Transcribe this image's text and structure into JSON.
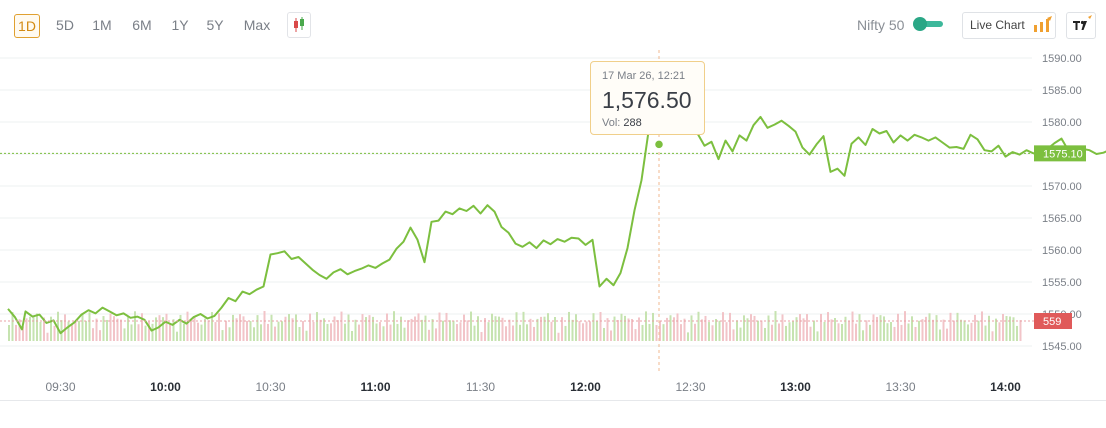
{
  "toolbar": {
    "ranges": [
      "1D",
      "5D",
      "1M",
      "6M",
      "1Y",
      "5Y",
      "Max"
    ],
    "active_range": "1D",
    "index_label": "Nifty 50",
    "live_chart_label": "Live Chart"
  },
  "tooltip": {
    "date": "17 Mar 26, 12:21",
    "price": "1,576.50",
    "vol_label": "Vol:",
    "vol_value": "288"
  },
  "colors": {
    "line": "#7cbf3f",
    "up_volume": "#c6e3b0",
    "down_volume": "#f2c4c8",
    "price_tag": "#7cbf3f",
    "volume_tag": "#e05a5a"
  },
  "chart_data": {
    "type": "line",
    "x_axis": {
      "ticks": [
        "09:30",
        "10:00",
        "10:30",
        "11:00",
        "11:30",
        "12:00",
        "12:30",
        "13:00",
        "13:30",
        "14:00"
      ],
      "bold_ticks": [
        "10:00",
        "11:00",
        "12:00",
        "13:00",
        "14:00"
      ]
    },
    "y_axis": {
      "ticks": [
        "1590.00",
        "1585.00",
        "1580.00",
        "1575.00",
        "1570.00",
        "1565.00",
        "1560.00",
        "1555.00",
        "1550.00",
        "1545.00"
      ],
      "min": 1545,
      "max": 1590
    },
    "reference_price": 1575.1,
    "reference_label": "1575.10",
    "volume_label": "559",
    "start_minute": 555,
    "price_series": [
      [
        555,
        1550.8
      ],
      [
        557,
        1549.5
      ],
      [
        559,
        1547.6
      ],
      [
        560,
        1550.4
      ],
      [
        562,
        1549.6
      ],
      [
        564,
        1549.9
      ],
      [
        566,
        1548.6
      ],
      [
        568,
        1549.0
      ],
      [
        570,
        1547.0
      ],
      [
        572,
        1547.9
      ],
      [
        574,
        1548.7
      ],
      [
        576,
        1549.9
      ],
      [
        578,
        1550.6
      ],
      [
        580,
        1550.1
      ],
      [
        582,
        1551.0
      ],
      [
        584,
        1550.4
      ],
      [
        586,
        1549.8
      ],
      [
        588,
        1550.1
      ],
      [
        590,
        1549.4
      ],
      [
        592,
        1549.6
      ],
      [
        594,
        1549.1
      ],
      [
        596,
        1547.4
      ],
      [
        598,
        1547.9
      ],
      [
        600,
        1548.8
      ],
      [
        602,
        1548.3
      ],
      [
        604,
        1549.1
      ],
      [
        606,
        1548.5
      ],
      [
        608,
        1549.5
      ],
      [
        610,
        1550.0
      ],
      [
        612,
        1549.3
      ],
      [
        614,
        1549.7
      ],
      [
        616,
        1551.0
      ],
      [
        618,
        1552.5
      ],
      [
        620,
        1552.0
      ],
      [
        622,
        1553.5
      ],
      [
        624,
        1553.1
      ],
      [
        626,
        1553.8
      ],
      [
        628,
        1554.3
      ],
      [
        630,
        1559.3
      ],
      [
        632,
        1559.5
      ],
      [
        634,
        1559.8
      ],
      [
        636,
        1558.6
      ],
      [
        638,
        1558.9
      ],
      [
        640,
        1557.9
      ],
      [
        642,
        1556.9
      ],
      [
        644,
        1556.1
      ],
      [
        646,
        1555.5
      ],
      [
        648,
        1556.5
      ],
      [
        650,
        1557.0
      ],
      [
        652,
        1556.2
      ],
      [
        654,
        1556.7
      ],
      [
        656,
        1557.1
      ],
      [
        658,
        1557.6
      ],
      [
        660,
        1557.2
      ],
      [
        662,
        1557.9
      ],
      [
        664,
        1558.5
      ],
      [
        666,
        1560.2
      ],
      [
        668,
        1561.3
      ],
      [
        670,
        1563.5
      ],
      [
        672,
        1561.6
      ],
      [
        674,
        1558.1
      ],
      [
        676,
        1564.4
      ],
      [
        678,
        1564.6
      ],
      [
        680,
        1566.0
      ],
      [
        682,
        1565.6
      ],
      [
        684,
        1566.5
      ],
      [
        686,
        1566.1
      ],
      [
        688,
        1566.9
      ],
      [
        690,
        1565.7
      ],
      [
        692,
        1567.0
      ],
      [
        694,
        1566.0
      ],
      [
        696,
        1563.6
      ],
      [
        698,
        1562.7
      ],
      [
        700,
        1561.0
      ],
      [
        702,
        1560.5
      ],
      [
        704,
        1561.2
      ],
      [
        706,
        1560.3
      ],
      [
        708,
        1561.5
      ],
      [
        710,
        1560.9
      ],
      [
        712,
        1561.7
      ],
      [
        714,
        1561.3
      ],
      [
        716,
        1561.9
      ],
      [
        718,
        1561.8
      ],
      [
        720,
        1560.8
      ],
      [
        722,
        1561.6
      ],
      [
        724,
        1554.3
      ],
      [
        726,
        1555.5
      ],
      [
        728,
        1554.5
      ],
      [
        730,
        1556.4
      ],
      [
        732,
        1560.3
      ],
      [
        734,
        1566.2
      ],
      [
        736,
        1570.9
      ],
      [
        738,
        1578.5
      ],
      [
        740,
        1579.3
      ],
      [
        742,
        1581.3
      ],
      [
        744,
        1578.2
      ],
      [
        746,
        1579.7
      ],
      [
        748,
        1578.8
      ],
      [
        750,
        1579.6
      ],
      [
        752,
        1578.2
      ],
      [
        754,
        1576.3
      ],
      [
        756,
        1576.9
      ],
      [
        758,
        1574.2
      ],
      [
        760,
        1577.1
      ],
      [
        762,
        1575.4
      ],
      [
        764,
        1577.9
      ],
      [
        766,
        1577.1
      ],
      [
        768,
        1579.5
      ],
      [
        770,
        1580.8
      ],
      [
        772,
        1579.1
      ],
      [
        774,
        1579.6
      ],
      [
        776,
        1580.2
      ],
      [
        778,
        1579.4
      ],
      [
        780,
        1578.5
      ],
      [
        782,
        1576.0
      ],
      [
        784,
        1574.9
      ],
      [
        786,
        1576.5
      ],
      [
        788,
        1577.8
      ],
      [
        790,
        1572.2
      ],
      [
        792,
        1572.7
      ],
      [
        794,
        1571.6
      ],
      [
        796,
        1576.6
      ],
      [
        798,
        1577.6
      ],
      [
        800,
        1576.4
      ],
      [
        802,
        1578.9
      ],
      [
        804,
        1578.2
      ],
      [
        806,
        1578.6
      ],
      [
        808,
        1576.8
      ],
      [
        810,
        1577.9
      ],
      [
        812,
        1577.1
      ],
      [
        814,
        1578.0
      ],
      [
        816,
        1577.6
      ],
      [
        818,
        1577.1
      ],
      [
        820,
        1577.6
      ],
      [
        822,
        1576.8
      ],
      [
        824,
        1576.0
      ],
      [
        826,
        1576.1
      ],
      [
        828,
        1575.8
      ],
      [
        830,
        1578.0
      ],
      [
        832,
        1577.3
      ],
      [
        834,
        1575.6
      ],
      [
        836,
        1575.4
      ],
      [
        838,
        1576.3
      ],
      [
        840,
        1574.6
      ],
      [
        842,
        1575.3
      ],
      [
        844,
        1574.9
      ],
      [
        846,
        1575.6
      ],
      [
        848,
        1575.1
      ],
      [
        850,
        1575.3
      ],
      [
        852,
        1575.8
      ],
      [
        854,
        1576.7
      ],
      [
        856,
        1577.4
      ],
      [
        858,
        1575.5
      ],
      [
        860,
        1575.7
      ],
      [
        862,
        1575.8
      ],
      [
        864,
        1575.6
      ],
      [
        866,
        1575.0
      ],
      [
        868,
        1575.2
      ],
      [
        870,
        1575.7
      ],
      [
        872,
        1576.0
      ],
      [
        874,
        1577.9
      ],
      [
        876,
        1578.6
      ],
      [
        878,
        1578.6
      ],
      [
        880,
        1578.8
      ],
      [
        882,
        1578.1
      ],
      [
        884,
        1576.8
      ],
      [
        886,
        1576.4
      ],
      [
        888,
        1577.0
      ],
      [
        890,
        1578.8
      ],
      [
        892,
        1578.6
      ],
      [
        894,
        1578.2
      ],
      [
        896,
        1578.7
      ],
      [
        898,
        1577.6
      ],
      [
        900,
        1577.7
      ],
      [
        902,
        1576.1
      ],
      [
        904,
        1575.1
      ],
      [
        906,
        1575.7
      ],
      [
        908,
        1574.7
      ],
      [
        910,
        1575.4
      ],
      [
        912,
        1575.6
      ],
      [
        914,
        1575.8
      ],
      [
        916,
        1575.6
      ],
      [
        918,
        1575.1
      ],
      [
        920,
        1575.2
      ],
      [
        922,
        1575.5
      ],
      [
        924,
        1575.1
      ],
      [
        926,
        1575.2
      ]
    ]
  }
}
